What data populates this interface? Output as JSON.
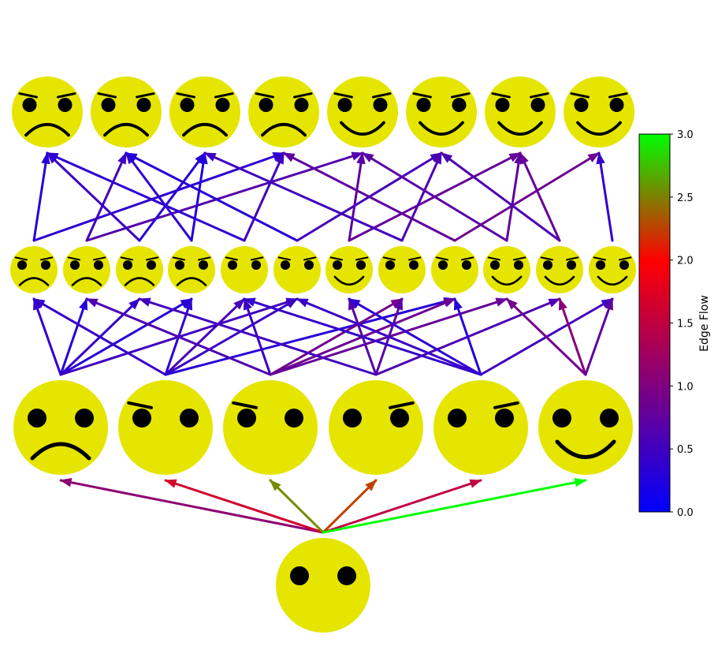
{
  "colors": {
    "face": "#e5e500",
    "feature": "#000000",
    "colormap": [
      "#0000ff",
      "#800080",
      "#ff0000",
      "#00ff00"
    ]
  },
  "nodes": [
    {
      "id": "root",
      "layer": 0,
      "mood": "neutral",
      "brows": "none"
    },
    {
      "id": "m1",
      "layer": 1,
      "mood": "sad",
      "brows": "none"
    },
    {
      "id": "m2",
      "layer": 1,
      "mood": "neutral",
      "brows": "left"
    },
    {
      "id": "m3",
      "layer": 1,
      "mood": "neutral",
      "brows": "left"
    },
    {
      "id": "m4",
      "layer": 1,
      "mood": "neutral",
      "brows": "right"
    },
    {
      "id": "m5",
      "layer": 1,
      "mood": "neutral",
      "brows": "right"
    },
    {
      "id": "m6",
      "layer": 1,
      "mood": "happy",
      "brows": "none"
    },
    {
      "id": "s1",
      "layer": 2,
      "mood": "sad",
      "brows": "both"
    },
    {
      "id": "s2",
      "layer": 2,
      "mood": "sad",
      "brows": "both"
    },
    {
      "id": "s3",
      "layer": 2,
      "mood": "sad",
      "brows": "both"
    },
    {
      "id": "s4",
      "layer": 2,
      "mood": "sad",
      "brows": "both"
    },
    {
      "id": "s5",
      "layer": 2,
      "mood": "neutral",
      "brows": "both"
    },
    {
      "id": "s6",
      "layer": 2,
      "mood": "neutral",
      "brows": "both"
    },
    {
      "id": "s7",
      "layer": 2,
      "mood": "happy",
      "brows": "both"
    },
    {
      "id": "s8",
      "layer": 2,
      "mood": "neutral",
      "brows": "both"
    },
    {
      "id": "s9",
      "layer": 2,
      "mood": "neutral",
      "brows": "both"
    },
    {
      "id": "s10",
      "layer": 2,
      "mood": "happy",
      "brows": "both"
    },
    {
      "id": "s11",
      "layer": 2,
      "mood": "happy",
      "brows": "both"
    },
    {
      "id": "s12",
      "layer": 2,
      "mood": "happy",
      "brows": "both"
    },
    {
      "id": "t1",
      "layer": 3,
      "mood": "sad",
      "brows": "both"
    },
    {
      "id": "t2",
      "layer": 3,
      "mood": "sad",
      "brows": "both"
    },
    {
      "id": "t3",
      "layer": 3,
      "mood": "sad",
      "brows": "both"
    },
    {
      "id": "t4",
      "layer": 3,
      "mood": "sad",
      "brows": "both"
    },
    {
      "id": "t5",
      "layer": 3,
      "mood": "happy",
      "brows": "both"
    },
    {
      "id": "t6",
      "layer": 3,
      "mood": "happy",
      "brows": "both"
    },
    {
      "id": "t7",
      "layer": 3,
      "mood": "happy",
      "brows": "both"
    },
    {
      "id": "t8",
      "layer": 3,
      "mood": "happy",
      "brows": "both"
    }
  ],
  "edges": [
    {
      "from": "root",
      "to": "m1",
      "flow": 1.1
    },
    {
      "from": "root",
      "to": "m2",
      "flow": 1.65
    },
    {
      "from": "root",
      "to": "m3",
      "flow": 2.55
    },
    {
      "from": "root",
      "to": "m4",
      "flow": 2.25
    },
    {
      "from": "root",
      "to": "m5",
      "flow": 1.5
    },
    {
      "from": "root",
      "to": "m6",
      "flow": 3.0
    },
    {
      "from": "m1",
      "to": "s1",
      "flow": 0.4
    },
    {
      "from": "m1",
      "to": "s2",
      "flow": 0.3
    },
    {
      "from": "m1",
      "to": "s3",
      "flow": 0.4
    },
    {
      "from": "m1",
      "to": "s4",
      "flow": 0.3
    },
    {
      "from": "m1",
      "to": "s6",
      "flow": 0.5
    },
    {
      "from": "m2",
      "to": "s1",
      "flow": 0.4
    },
    {
      "from": "m2",
      "to": "s4",
      "flow": 0.35
    },
    {
      "from": "m2",
      "to": "s5",
      "flow": 0.55
    },
    {
      "from": "m2",
      "to": "s6",
      "flow": 0.45
    },
    {
      "from": "m2",
      "to": "s9",
      "flow": 0.3
    },
    {
      "from": "m3",
      "to": "s2",
      "flow": 0.6
    },
    {
      "from": "m3",
      "to": "s5",
      "flow": 0.45
    },
    {
      "from": "m3",
      "to": "s8",
      "flow": 0.9
    },
    {
      "from": "m3",
      "to": "s9",
      "flow": 0.85
    },
    {
      "from": "m3",
      "to": "s10",
      "flow": 0.8
    },
    {
      "from": "m4",
      "to": "s3",
      "flow": 0.5
    },
    {
      "from": "m4",
      "to": "s7",
      "flow": 0.65
    },
    {
      "from": "m4",
      "to": "s8",
      "flow": 0.7
    },
    {
      "from": "m4",
      "to": "s11",
      "flow": 0.6
    },
    {
      "from": "m5",
      "to": "s5",
      "flow": 0.4
    },
    {
      "from": "m5",
      "to": "s6",
      "flow": 0.45
    },
    {
      "from": "m5",
      "to": "s7",
      "flow": 0.35
    },
    {
      "from": "m5",
      "to": "s9",
      "flow": 0.3
    },
    {
      "from": "m5",
      "to": "s12",
      "flow": 0.5
    },
    {
      "from": "m6",
      "to": "s10",
      "flow": 0.9
    },
    {
      "from": "m6",
      "to": "s11",
      "flow": 1.05
    },
    {
      "from": "m6",
      "to": "s12",
      "flow": 0.75
    },
    {
      "from": "s1",
      "to": "t1",
      "flow": 0.3
    },
    {
      "from": "s1",
      "to": "t4",
      "flow": 0.35
    },
    {
      "from": "s2",
      "to": "t2",
      "flow": 0.5
    },
    {
      "from": "s2",
      "to": "t5",
      "flow": 0.65
    },
    {
      "from": "s3",
      "to": "t1",
      "flow": 0.45
    },
    {
      "from": "s3",
      "to": "t3",
      "flow": 0.3
    },
    {
      "from": "s4",
      "to": "t2",
      "flow": 0.35
    },
    {
      "from": "s4",
      "to": "t3",
      "flow": 0.25
    },
    {
      "from": "s5",
      "to": "t1",
      "flow": 0.35
    },
    {
      "from": "s5",
      "to": "t4",
      "flow": 0.5
    },
    {
      "from": "s6",
      "to": "t2",
      "flow": 0.3
    },
    {
      "from": "s6",
      "to": "t6",
      "flow": 0.55
    },
    {
      "from": "s7",
      "to": "t5",
      "flow": 0.7
    },
    {
      "from": "s7",
      "to": "t7",
      "flow": 0.8
    },
    {
      "from": "s8",
      "to": "t3",
      "flow": 0.5
    },
    {
      "from": "s8",
      "to": "t6",
      "flow": 0.6
    },
    {
      "from": "s9",
      "to": "t4",
      "flow": 0.75
    },
    {
      "from": "s9",
      "to": "t8",
      "flow": 0.85
    },
    {
      "from": "s10",
      "to": "t5",
      "flow": 0.7
    },
    {
      "from": "s10",
      "to": "t7",
      "flow": 0.75
    },
    {
      "from": "s11",
      "to": "t6",
      "flow": 0.6
    },
    {
      "from": "s11",
      "to": "t7",
      "flow": 0.8
    },
    {
      "from": "s12",
      "to": "t8",
      "flow": 0.4
    }
  ],
  "colorbar": {
    "label": "Edge Flow",
    "min": 0.0,
    "max": 3.0,
    "ticks": [
      "0.0",
      "0.5",
      "1.0",
      "1.5",
      "2.0",
      "2.5",
      "3.0"
    ]
  }
}
